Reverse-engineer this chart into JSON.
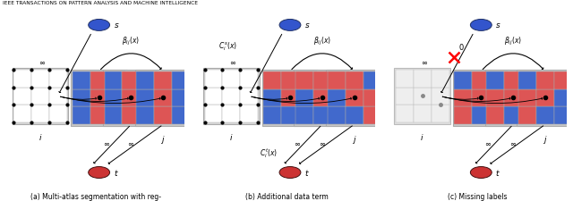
{
  "header": "IEEE TRANSACTIONS ON PATTERN ANALYSIS AND MACHINE INTELLIGENCE",
  "blue_cell": "#4169CC",
  "red_cell": "#DD5555",
  "gray_bg": "#C8C8C8",
  "light_gray_cell": "#E8E8E8",
  "source_color": "#3355CC",
  "sink_color": "#CC3333",
  "panel_captions": [
    "(a) Multi-atlas segmentation with reg-\nularisation",
    "(b) Additional data term",
    "(c) Missing labels"
  ],
  "atlas_colors": [
    [
      "#4169CC",
      "#DD5555",
      "#4169CC",
      "#4169CC",
      "#DD5555",
      "#4169CC",
      "#4169CC",
      "#DD5555",
      "#4169CC"
    ],
    [
      "#4169CC",
      "#4169CC",
      "#DD5555",
      "#4169CC",
      "#DD5555",
      "#DD5555",
      "#DD5555",
      "#DD5555",
      "#4169CC"
    ],
    [
      "#DD5555",
      "#4169CC",
      "#4169CC",
      "#DD5555",
      "#DD5555",
      "#4169CC",
      "#4169CC",
      "#DD5555",
      "#DD5555"
    ]
  ]
}
